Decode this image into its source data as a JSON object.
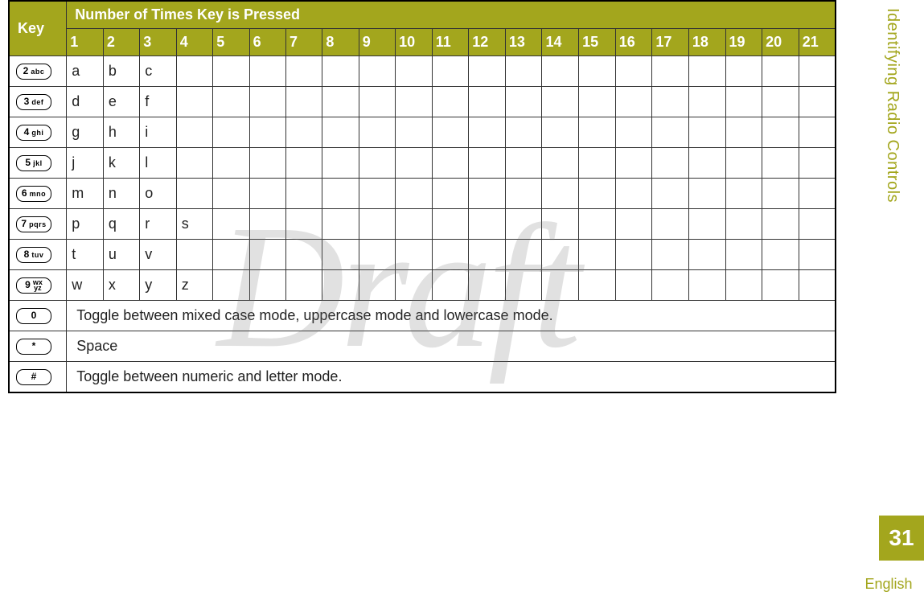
{
  "side": {
    "title": "Identifying Radio Controls",
    "page": "31",
    "lang": "English"
  },
  "watermark": "Draft",
  "header": {
    "key": "Key",
    "span": "Number of Times Key is Pressed"
  },
  "cols": [
    "1",
    "2",
    "3",
    "4",
    "5",
    "6",
    "7",
    "8",
    "9",
    "10",
    "11",
    "12",
    "13",
    "14",
    "15",
    "16",
    "17",
    "18",
    "19",
    "20",
    "21"
  ],
  "rows": [
    {
      "key_main": "2",
      "key_sub": "abc",
      "vals": [
        "a",
        "b",
        "c"
      ]
    },
    {
      "key_main": "3",
      "key_sub": "def",
      "vals": [
        "d",
        "e",
        "f"
      ]
    },
    {
      "key_main": "4",
      "key_sub": "ghi",
      "vals": [
        "g",
        "h",
        "i"
      ]
    },
    {
      "key_main": "5",
      "key_sub": "jkl",
      "vals": [
        "j",
        "k",
        "l"
      ]
    },
    {
      "key_main": "6",
      "key_sub": "mno",
      "vals": [
        "m",
        "n",
        "o"
      ]
    },
    {
      "key_main": "7",
      "key_sub": "pqrs",
      "vals": [
        "p",
        "q",
        "r",
        "s"
      ]
    },
    {
      "key_main": "8",
      "key_sub": "tuv",
      "vals": [
        "t",
        "u",
        "v"
      ]
    },
    {
      "key_main": "9",
      "key_sub": "wx\nyz",
      "twoLine": true,
      "vals": [
        "w",
        "x",
        "y",
        "z"
      ]
    },
    {
      "key_main": "0",
      "key_sub": "",
      "span_text": "Toggle between mixed case mode, uppercase mode and lowercase mode."
    },
    {
      "key_main": "*",
      "key_sub": "",
      "span_text": "Space"
    },
    {
      "key_main": "#",
      "key_sub": "",
      "span_text": "Toggle between numeric and letter mode."
    }
  ]
}
